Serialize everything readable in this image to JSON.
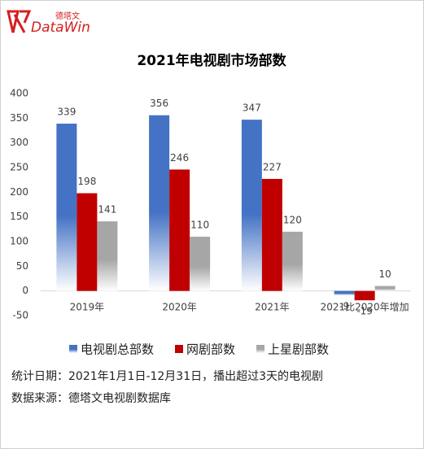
{
  "logo": {
    "brand_cn": "德塔文",
    "brand_en": "DataWin"
  },
  "chart_data": {
    "type": "bar",
    "title": "2021年电视剧市场部数",
    "categories": [
      "2019年",
      "2020年",
      "2021年",
      "2021比2020年增加"
    ],
    "series": [
      {
        "name": "电视剧总部数",
        "color": "#4472c4",
        "values": [
          339,
          356,
          347,
          -9
        ]
      },
      {
        "name": "网剧部数",
        "color": "#c00000",
        "values": [
          198,
          246,
          227,
          -19
        ]
      },
      {
        "name": "上星剧部数",
        "color": "#a6a6a6",
        "values": [
          141,
          110,
          120,
          10
        ]
      }
    ],
    "ylim": [
      -50,
      400
    ],
    "yticks": [
      -50,
      0,
      50,
      100,
      150,
      200,
      250,
      300,
      350,
      400
    ],
    "grid": false,
    "legend": "bottom"
  },
  "notes": [
    "统计日期：2021年1月1日-12月31日，播出超过3天的电视剧",
    "数据来源：德塔文电视剧数据库"
  ]
}
